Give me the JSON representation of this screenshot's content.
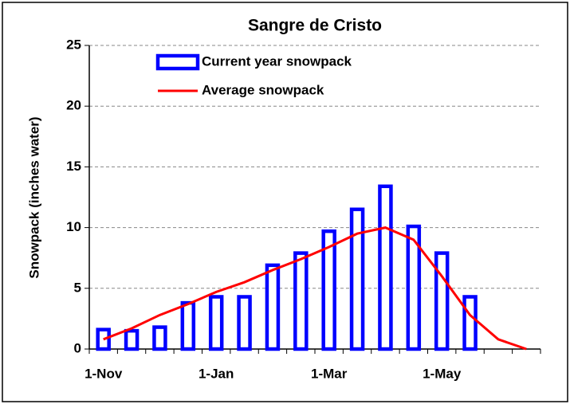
{
  "chart_data": {
    "type": "bar_line",
    "title": "Sangre de Cristo",
    "y_label": "Snowpack (inches water)",
    "categories": [
      "1-Nov",
      null,
      null,
      null,
      "1-Jan",
      null,
      null,
      null,
      "1-Mar",
      null,
      null,
      null,
      "1-May",
      null,
      null,
      null
    ],
    "series": [
      {
        "name": "Current year snowpack",
        "type": "bar",
        "color": "#0000ff",
        "values": [
          1.6,
          1.5,
          1.8,
          3.8,
          4.3,
          4.3,
          6.9,
          7.9,
          9.7,
          11.5,
          13.4,
          10.1,
          7.9,
          4.3,
          null,
          null
        ]
      },
      {
        "name": "Average snowpack",
        "type": "line",
        "color": "#ff0000",
        "values": [
          0.8,
          1.7,
          2.8,
          3.7,
          4.7,
          5.5,
          6.5,
          7.4,
          8.4,
          9.5,
          10.0,
          9.0,
          6.0,
          2.8,
          0.8,
          0.0
        ]
      }
    ],
    "ylim": [
      0,
      25
    ],
    "yticks": [
      0,
      5,
      10,
      15,
      20,
      25
    ],
    "grid": true
  }
}
